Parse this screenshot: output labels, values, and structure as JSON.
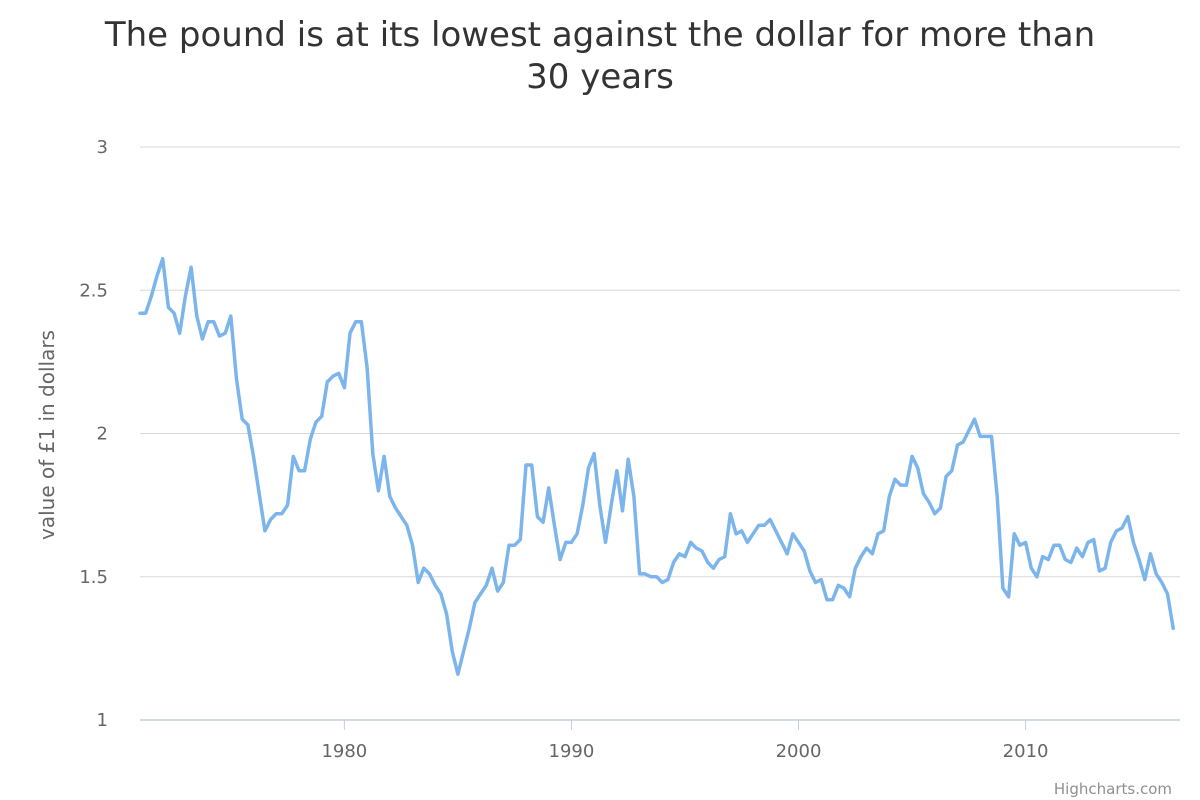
{
  "chart_data": {
    "type": "line",
    "title": "The pound is at its lowest against the dollar for more than 30 years",
    "xlabel": "",
    "ylabel": "value of £1 in dollars",
    "xlim": [
      1971,
      2016.8
    ],
    "ylim": [
      1,
      3
    ],
    "yticks": [
      "1",
      "1.5",
      "2",
      "2.5",
      "3"
    ],
    "xticks": [
      "1980",
      "1990",
      "2000",
      "2010"
    ],
    "grid": true,
    "legend": "none",
    "line_color": "#7cb5ec",
    "series": [
      {
        "x": [
          1971.0,
          1971.25,
          1971.5,
          1971.75,
          1972.0,
          1972.25,
          1972.5,
          1972.75,
          1973.0,
          1973.25,
          1973.5,
          1973.75,
          1974.0,
          1974.25,
          1974.5,
          1974.75,
          1975.0,
          1975.25,
          1975.5,
          1975.75,
          1976.0,
          1976.25,
          1976.5,
          1976.75,
          1977.0,
          1977.25,
          1977.5,
          1977.75,
          1978.0,
          1978.25,
          1978.5,
          1978.75,
          1979.0,
          1979.25,
          1979.5,
          1979.75,
          1980.0,
          1980.25,
          1980.5,
          1980.75,
          1981.0,
          1981.25,
          1981.5,
          1981.75,
          1982.0,
          1982.25,
          1982.5,
          1982.75,
          1983.0,
          1983.25,
          1983.5,
          1983.75,
          1984.0,
          1984.25,
          1984.5,
          1984.75,
          1985.0,
          1985.25,
          1985.5,
          1985.75,
          1986.0,
          1986.25,
          1986.5,
          1986.75,
          1987.0,
          1987.25,
          1987.5,
          1987.75,
          1988.0,
          1988.25,
          1988.5,
          1988.75,
          1989.0,
          1989.25,
          1989.5,
          1989.75,
          1990.0,
          1990.25,
          1990.5,
          1990.75,
          1991.0,
          1991.25,
          1991.5,
          1991.75,
          1992.0,
          1992.25,
          1992.5,
          1992.75,
          1993.0,
          1993.25,
          1993.5,
          1993.75,
          1994.0,
          1994.25,
          1994.5,
          1994.75,
          1995.0,
          1995.25,
          1995.5,
          1995.75,
          1996.0,
          1996.25,
          1996.5,
          1996.75,
          1997.0,
          1997.25,
          1997.5,
          1997.75,
          1998.0,
          1998.25,
          1998.5,
          1998.75,
          1999.0,
          1999.25,
          1999.5,
          1999.75,
          2000.0,
          2000.25,
          2000.5,
          2000.75,
          2001.0,
          2001.25,
          2001.5,
          2001.75,
          2002.0,
          2002.25,
          2002.5,
          2002.75,
          2003.0,
          2003.25,
          2003.5,
          2003.75,
          2004.0,
          2004.25,
          2004.5,
          2004.75,
          2005.0,
          2005.25,
          2005.5,
          2005.75,
          2006.0,
          2006.25,
          2006.5,
          2006.75,
          2007.0,
          2007.25,
          2007.5,
          2007.75,
          2008.0,
          2008.25,
          2008.5,
          2008.75,
          2009.0,
          2009.25,
          2009.5,
          2009.75,
          2010.0,
          2010.25,
          2010.5,
          2010.75,
          2011.0,
          2011.25,
          2011.5,
          2011.75,
          2012.0,
          2012.25,
          2012.5,
          2012.75,
          2013.0,
          2013.25,
          2013.5,
          2013.75,
          2014.0,
          2014.25,
          2014.5,
          2014.75,
          2015.0,
          2015.25,
          2015.5,
          2015.75,
          2016.0,
          2016.25,
          2016.5
        ],
        "values": [
          2.42,
          2.42,
          2.48,
          2.55,
          2.61,
          2.44,
          2.42,
          2.35,
          2.48,
          2.58,
          2.41,
          2.33,
          2.39,
          2.39,
          2.34,
          2.35,
          2.41,
          2.19,
          2.05,
          2.03,
          1.92,
          1.79,
          1.66,
          1.7,
          1.72,
          1.72,
          1.75,
          1.92,
          1.87,
          1.87,
          1.98,
          2.04,
          2.06,
          2.18,
          2.2,
          2.21,
          2.16,
          2.35,
          2.39,
          2.39,
          2.23,
          1.93,
          1.8,
          1.92,
          1.78,
          1.74,
          1.71,
          1.68,
          1.61,
          1.48,
          1.53,
          1.51,
          1.47,
          1.44,
          1.37,
          1.24,
          1.16,
          1.24,
          1.32,
          1.41,
          1.44,
          1.47,
          1.53,
          1.45,
          1.48,
          1.61,
          1.61,
          1.63,
          1.89,
          1.89,
          1.71,
          1.69,
          1.81,
          1.68,
          1.56,
          1.62,
          1.62,
          1.65,
          1.75,
          1.88,
          1.93,
          1.75,
          1.62,
          1.75,
          1.87,
          1.73,
          1.91,
          1.78,
          1.51,
          1.51,
          1.5,
          1.5,
          1.48,
          1.49,
          1.55,
          1.58,
          1.57,
          1.62,
          1.6,
          1.59,
          1.55,
          1.53,
          1.56,
          1.57,
          1.72,
          1.65,
          1.66,
          1.62,
          1.65,
          1.68,
          1.68,
          1.7,
          1.66,
          1.62,
          1.58,
          1.65,
          1.62,
          1.59,
          1.52,
          1.48,
          1.49,
          1.42,
          1.42,
          1.47,
          1.46,
          1.43,
          1.53,
          1.57,
          1.6,
          1.58,
          1.65,
          1.66,
          1.78,
          1.84,
          1.82,
          1.82,
          1.92,
          1.88,
          1.79,
          1.76,
          1.72,
          1.74,
          1.85,
          1.87,
          1.96,
          1.97,
          2.01,
          2.05,
          1.99,
          1.99,
          1.99,
          1.78,
          1.46,
          1.43,
          1.65,
          1.61,
          1.62,
          1.53,
          1.5,
          1.57,
          1.56,
          1.61,
          1.61,
          1.56,
          1.55,
          1.6,
          1.57,
          1.62,
          1.63,
          1.52,
          1.53,
          1.62,
          1.66,
          1.67,
          1.71,
          1.62,
          1.56,
          1.49,
          1.58,
          1.51,
          1.48,
          1.44,
          1.32
        ]
      }
    ]
  },
  "credits": "Highcharts.com"
}
